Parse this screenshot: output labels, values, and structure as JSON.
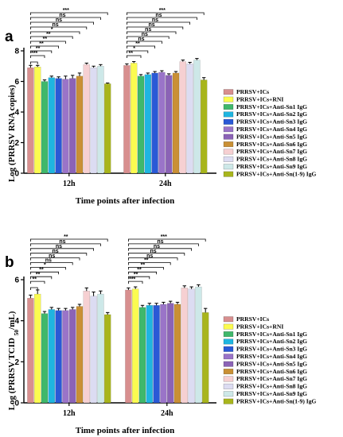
{
  "colors": [
    "#d88f8f",
    "#fbfb50",
    "#3fb86b",
    "#1fb5e0",
    "#2a59d6",
    "#9a74c8",
    "#8b63b6",
    "#c99035",
    "#f6d0d2",
    "#dcdcf2",
    "#cde8e8",
    "#a8b51c"
  ],
  "chart_data": [
    {
      "type": "bar",
      "panel": "a",
      "categories": [
        "12h",
        "24h"
      ],
      "xlabel": "Time points after infection",
      "ylabel": "Log (PRRSV RNA copies)",
      "ylim": [
        0,
        8
      ],
      "yticks": [
        "0",
        "2",
        "4",
        "6",
        "8"
      ],
      "legend_position": "right",
      "series": [
        {
          "name": "PRRSV+ICs",
          "values": [
            6.9,
            7.05
          ],
          "errors": [
            0.15,
            0.1
          ]
        },
        {
          "name": "PRRSV+ICs+RNI",
          "values": [
            6.95,
            7.2
          ],
          "errors": [
            0.1,
            0.1
          ]
        },
        {
          "name": "PRRSV+ICs+Anti-Sn1 IgG",
          "values": [
            6.0,
            6.35
          ],
          "errors": [
            0.1,
            0.1
          ]
        },
        {
          "name": "PRRSV+ICs+Anti-Sn2 IgG",
          "values": [
            6.25,
            6.45
          ],
          "errors": [
            0.1,
            0.1
          ]
        },
        {
          "name": "PRRSV+ICs+Anti-Sn3 IgG",
          "values": [
            6.2,
            6.55
          ],
          "errors": [
            0.1,
            0.1
          ]
        },
        {
          "name": "PRRSV+ICs+Anti-Sn4 IgG",
          "values": [
            6.15,
            6.6
          ],
          "errors": [
            0.2,
            0.1
          ]
        },
        {
          "name": "PRRSV+ICs+Anti-Sn5 IgG",
          "values": [
            6.2,
            6.4
          ],
          "errors": [
            0.2,
            0.1
          ]
        },
        {
          "name": "PRRSV+ICs+Anti-Sn6 IgG",
          "values": [
            6.35,
            6.55
          ],
          "errors": [
            0.2,
            0.1
          ]
        },
        {
          "name": "PRRSV+ICs+Anti-Sn7 IgG",
          "values": [
            7.1,
            7.3
          ],
          "errors": [
            0.1,
            0.1
          ]
        },
        {
          "name": "PRRSV+ICs+Anti-Sn8 IgG",
          "values": [
            6.9,
            7.15
          ],
          "errors": [
            0.1,
            0.1
          ]
        },
        {
          "name": "PRRSV+ICs+Anti-Sn9 IgG",
          "values": [
            7.0,
            7.4
          ],
          "errors": [
            0.1,
            0.1
          ]
        },
        {
          "name": "PRRSV+ICs+Anti-Sn(1-9) IgG",
          "values": [
            5.85,
            6.1
          ],
          "errors": [
            0.05,
            0.15
          ]
        }
      ],
      "significance": [
        {
          "group": "12h",
          "labels": [
            "***",
            "**",
            "**",
            "**",
            "**",
            "*",
            "ns",
            "ns",
            "ns",
            "***"
          ]
        },
        {
          "group": "24h",
          "labels": [
            "**",
            "*",
            "**",
            "ns",
            "ns",
            "ns",
            "ns",
            "ns",
            "ns",
            "***"
          ]
        }
      ]
    },
    {
      "type": "bar",
      "panel": "b",
      "categories": [
        "12h",
        "24h"
      ],
      "xlabel": "Time points after infection",
      "ylabel": "Log (PRRSV TCID50/mL)",
      "ylim": [
        0,
        6
      ],
      "yticks": [
        "0",
        "2",
        "4",
        "6"
      ],
      "legend_position": "right",
      "series": [
        {
          "name": "PRRSV+ICs",
          "values": [
            5.1,
            5.5
          ],
          "errors": [
            0.15,
            0.1
          ]
        },
        {
          "name": "PRRSV+ICs+RNI",
          "values": [
            5.3,
            5.55
          ],
          "errors": [
            0.2,
            0.1
          ]
        },
        {
          "name": "PRRSV+ICs+Anti-Sn1 IgG",
          "values": [
            4.35,
            4.65
          ],
          "errors": [
            0.1,
            0.1
          ]
        },
        {
          "name": "PRRSV+ICs+Anti-Sn2 IgG",
          "values": [
            4.55,
            4.75
          ],
          "errors": [
            0.1,
            0.1
          ]
        },
        {
          "name": "PRRSV+ICs+Anti-Sn3 IgG",
          "values": [
            4.5,
            4.75
          ],
          "errors": [
            0.1,
            0.1
          ]
        },
        {
          "name": "PRRSV+ICs+Anti-Sn4 IgG",
          "values": [
            4.5,
            4.8
          ],
          "errors": [
            0.1,
            0.1
          ]
        },
        {
          "name": "PRRSV+ICs+Anti-Sn5 IgG",
          "values": [
            4.55,
            4.85
          ],
          "errors": [
            0.1,
            0.1
          ]
        },
        {
          "name": "PRRSV+ICs+Anti-Sn6 IgG",
          "values": [
            4.7,
            4.8
          ],
          "errors": [
            0.1,
            0.1
          ]
        },
        {
          "name": "PRRSV+ICs+Anti-Sn7 IgG",
          "values": [
            5.45,
            5.6
          ],
          "errors": [
            0.15,
            0.1
          ]
        },
        {
          "name": "PRRSV+ICs+Anti-Sn8 IgG",
          "values": [
            5.2,
            5.55
          ],
          "errors": [
            0.2,
            0.1
          ]
        },
        {
          "name": "PRRSV+ICs+Anti-Sn9 IgG",
          "values": [
            5.3,
            5.65
          ],
          "errors": [
            0.15,
            0.1
          ]
        },
        {
          "name": "PRRSV+ICs+Anti-Sn(1-9) IgG",
          "values": [
            4.3,
            4.4
          ],
          "errors": [
            0.1,
            0.2
          ]
        }
      ],
      "significance": [
        {
          "group": "12h",
          "labels": [
            "**",
            "**",
            "**",
            "*",
            "ns",
            "ns",
            "ns",
            "ns",
            "ns",
            "**"
          ]
        },
        {
          "group": "24h",
          "labels": [
            "***",
            "**",
            "**",
            "**",
            "**",
            "ns",
            "ns",
            "ns",
            "ns",
            "***"
          ]
        }
      ]
    }
  ]
}
